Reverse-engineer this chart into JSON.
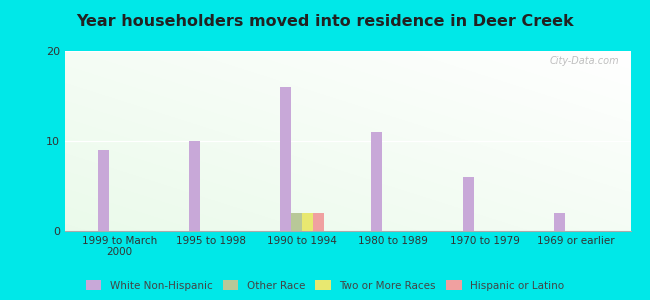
{
  "title": "Year householders moved into residence in Deer Creek",
  "categories": [
    "1999 to March\n2000",
    "1995 to 1998",
    "1990 to 1994",
    "1980 to 1989",
    "1970 to 1979",
    "1969 or earlier"
  ],
  "white_non_hispanic": [
    9,
    10,
    16,
    11,
    6,
    2
  ],
  "other_race": [
    0,
    0,
    2,
    0,
    0,
    0
  ],
  "two_or_more_races": [
    0,
    0,
    2,
    0,
    0,
    0
  ],
  "hispanic_or_latino": [
    0,
    0,
    2,
    0,
    0,
    0
  ],
  "color_white": "#c8a8d8",
  "color_other": "#b8c898",
  "color_two": "#e8e870",
  "color_hisp": "#f0a0a0",
  "ylim": [
    0,
    20
  ],
  "yticks": [
    0,
    10,
    20
  ],
  "background_color": "#00e8e8",
  "bar_width": 0.12,
  "legend_labels": [
    "White Non-Hispanic",
    "Other Race",
    "Two or More Races",
    "Hispanic or Latino"
  ]
}
